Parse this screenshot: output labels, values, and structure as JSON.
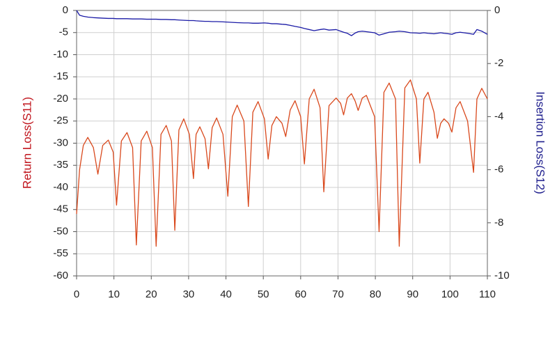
{
  "chart_data": {
    "type": "line",
    "y_label": "Return Loss(S11)",
    "y2_label": "Insertion Loss(S12)",
    "y_label_color": "#c0141c",
    "y2_label_color": "#1c1c8c",
    "x": [
      0,
      0.8,
      1.8,
      3,
      4.5,
      5.7,
      7,
      8.5,
      9.8,
      10.7,
      12,
      13.5,
      15,
      16,
      17.3,
      18.8,
      20.3,
      21.3,
      22.6,
      24,
      25.4,
      26.3,
      27.4,
      28.7,
      30.2,
      31.3,
      32,
      33,
      34.4,
      35.3,
      36.3,
      37.5,
      39.2,
      40.5,
      41.7,
      43,
      44.8,
      46,
      47.2,
      48.6,
      50.3,
      51.3,
      52.3,
      53.5,
      55,
      56,
      57.2,
      58.5,
      60,
      61,
      62.3,
      63.6,
      65.2,
      66.2,
      67.6,
      69.5,
      70.7,
      71.5,
      72.5,
      73.6,
      74.6,
      75.4,
      76.5,
      77.6,
      79.8,
      81,
      82.3,
      83.7,
      85.4,
      86.4,
      87.9,
      89.4,
      91,
      91.9,
      93,
      94.1,
      95.7,
      96.6,
      97.5,
      98.4,
      99.6,
      100.5,
      101.6,
      102.7,
      104.7,
      106.3,
      107.2,
      108.5,
      110
    ],
    "series": [
      {
        "name": "Return Loss(S11)",
        "color": "#d9481c",
        "values": [
          -46,
          -36,
          -30.5,
          -28.7,
          -31,
          -37,
          -30.5,
          -29.3,
          -32,
          -44,
          -29.5,
          -27.6,
          -31,
          -53,
          -29.5,
          -27.3,
          -31,
          -53.3,
          -28,
          -26,
          -29.5,
          -49.7,
          -27,
          -24.5,
          -28,
          -38,
          -28,
          -26.3,
          -29,
          -35.8,
          -26.5,
          -24.3,
          -28,
          -42,
          -24,
          -21.4,
          -25,
          -44.3,
          -23,
          -20.6,
          -24.5,
          -33.6,
          -26,
          -24,
          -25.5,
          -28.5,
          -22.5,
          -20.4,
          -24,
          -34.7,
          -20,
          -17.8,
          -22,
          -41,
          -21.5,
          -19.8,
          -21,
          -23.6,
          -19.8,
          -18.8,
          -20.5,
          -22.6,
          -19.8,
          -19.2,
          -24,
          -50,
          -18.5,
          -16.4,
          -20,
          -53.3,
          -17.5,
          -15.7,
          -20,
          -34.5,
          -20,
          -18.5,
          -23,
          -28.9,
          -25.5,
          -24.5,
          -25.5,
          -27.5,
          -22,
          -20.6,
          -25,
          -36.6,
          -20,
          -17.6,
          -20
        ]
      },
      {
        "name": "Insertion Loss(S12)",
        "color": "#1a1aa6",
        "axis": "y2",
        "values": [
          0,
          -0.18,
          -0.22,
          -0.25,
          -0.27,
          -0.28,
          -0.29,
          -0.3,
          -0.3,
          -0.31,
          -0.31,
          -0.31,
          -0.32,
          -0.32,
          -0.32,
          -0.33,
          -0.33,
          -0.33,
          -0.34,
          -0.34,
          -0.35,
          -0.35,
          -0.36,
          -0.37,
          -0.38,
          -0.38,
          -0.39,
          -0.4,
          -0.41,
          -0.41,
          -0.42,
          -0.42,
          -0.43,
          -0.44,
          -0.45,
          -0.46,
          -0.47,
          -0.47,
          -0.48,
          -0.48,
          -0.47,
          -0.48,
          -0.5,
          -0.5,
          -0.52,
          -0.53,
          -0.56,
          -0.6,
          -0.64,
          -0.68,
          -0.72,
          -0.76,
          -0.72,
          -0.7,
          -0.74,
          -0.72,
          -0.78,
          -0.82,
          -0.86,
          -0.95,
          -0.85,
          -0.8,
          -0.78,
          -0.8,
          -0.84,
          -0.93,
          -0.88,
          -0.82,
          -0.8,
          -0.78,
          -0.8,
          -0.84,
          -0.85,
          -0.86,
          -0.84,
          -0.86,
          -0.88,
          -0.86,
          -0.84,
          -0.86,
          -0.88,
          -0.9,
          -0.84,
          -0.82,
          -0.86,
          -0.9,
          -0.72,
          -0.78,
          -0.9
        ]
      }
    ],
    "xlim": [
      0,
      110
    ],
    "xticks": [
      0,
      10,
      20,
      30,
      40,
      50,
      60,
      70,
      80,
      90,
      100,
      110
    ],
    "ylim": [
      -60,
      0
    ],
    "yticks": [
      0,
      -5,
      -10,
      -15,
      -20,
      -25,
      -30,
      -35,
      -40,
      -45,
      -50,
      -55,
      -60
    ],
    "y2lim": [
      -10,
      0
    ],
    "y2ticks": [
      0,
      -2,
      -4,
      -6,
      -8,
      -10
    ],
    "grid": true
  }
}
